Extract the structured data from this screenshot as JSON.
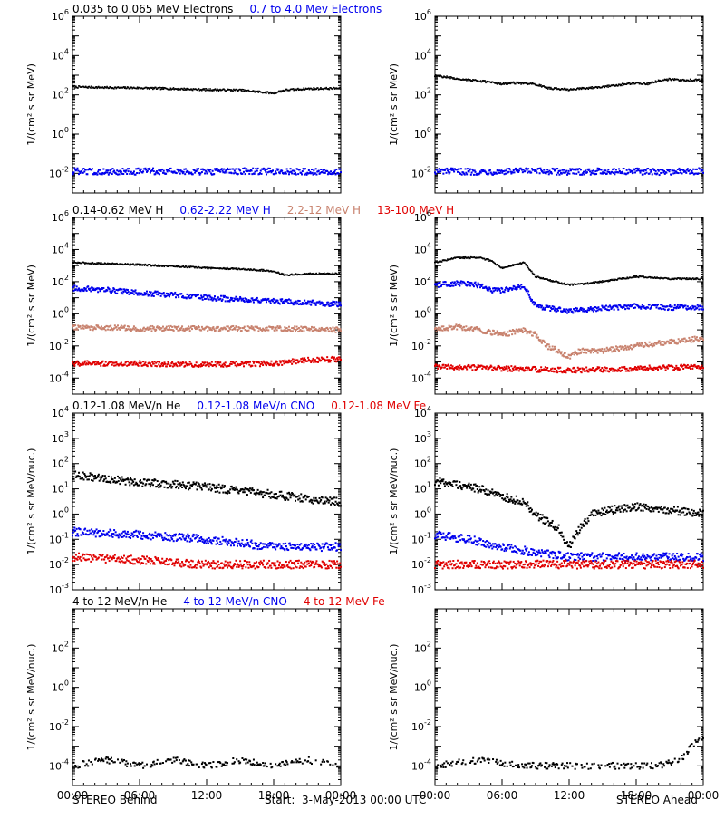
{
  "colors": {
    "black": "#000000",
    "blue": "#0000ee",
    "tan": "#c8826e",
    "red": "#e00000"
  },
  "footer": {
    "left": "STEREO Behind",
    "center": "Start:  3-May-2013 00:00 UTC",
    "right": "STEREO Ahead"
  },
  "x_ticks": [
    "00:00",
    "06:00",
    "12:00",
    "18:00",
    "00:00"
  ],
  "chart_data": [
    {
      "type": "scatter",
      "row": 0,
      "title": "",
      "legend": [
        {
          "text": "0.035 to 0.065 MeV Electrons",
          "color": "black"
        },
        {
          "text": "0.7 to 4.0 Mev Electrons",
          "color": "blue"
        }
      ],
      "ylabel": "1/(cm² s sr MeV)",
      "yscale": "log",
      "ylim_exp": [
        -3,
        6
      ],
      "yticks_exp": [
        -2,
        0,
        2,
        4,
        6
      ],
      "xlim_hours": [
        0,
        24
      ],
      "panels": [
        {
          "name": "STEREO Behind",
          "series": [
            {
              "color": "black",
              "x": [
                0,
                3,
                6,
                9,
                12,
                15,
                18,
                19,
                21,
                24
              ],
              "y": [
                250,
                230,
                220,
                200,
                180,
                170,
                120,
                170,
                200,
                210
              ]
            },
            {
              "color": "blue",
              "x": [
                0,
                4,
                8,
                12,
                16,
                20,
                24
              ],
              "y": [
                0.013,
                0.012,
                0.013,
                0.012,
                0.013,
                0.012,
                0.013
              ]
            }
          ]
        },
        {
          "name": "STEREO Ahead",
          "series": [
            {
              "color": "black",
              "x": [
                0,
                1,
                2,
                4,
                6,
                7,
                9,
                10,
                12,
                13,
                15,
                18,
                19,
                20,
                21,
                22,
                24
              ],
              "y": [
                900,
                800,
                650,
                500,
                350,
                400,
                350,
                220,
                180,
                200,
                250,
                400,
                350,
                500,
                600,
                550,
                550
              ]
            },
            {
              "color": "blue",
              "x": [
                0,
                4,
                8,
                12,
                16,
                20,
                24
              ],
              "y": [
                0.013,
                0.012,
                0.013,
                0.012,
                0.013,
                0.012,
                0.013
              ]
            }
          ]
        }
      ]
    },
    {
      "type": "scatter",
      "row": 1,
      "title": "",
      "legend": [
        {
          "text": "0.14-0.62 MeV H",
          "color": "black"
        },
        {
          "text": "0.62-2.22 MeV H",
          "color": "blue"
        },
        {
          "text": "2.2-12 MeV H",
          "color": "tan"
        },
        {
          "text": "13-100 MeV H",
          "color": "red"
        }
      ],
      "ylabel": "1/(cm² s sr MeV)",
      "yscale": "log",
      "ylim_exp": [
        -5,
        6
      ],
      "yticks_exp": [
        -4,
        -2,
        0,
        2,
        4,
        6
      ],
      "xlim_hours": [
        0,
        24
      ],
      "panels": [
        {
          "name": "STEREO Behind",
          "series": [
            {
              "color": "black",
              "x": [
                0,
                3,
                6,
                9,
                12,
                15,
                18,
                19,
                21,
                24
              ],
              "y": [
                1500,
                1300,
                1100,
                900,
                700,
                600,
                450,
                250,
                300,
                300
              ]
            },
            {
              "color": "blue",
              "x": [
                0,
                3,
                6,
                9,
                12,
                15,
                18,
                21,
                24
              ],
              "y": [
                40,
                30,
                20,
                15,
                10,
                8,
                6,
                5,
                4
              ]
            },
            {
              "color": "tan",
              "x": [
                0,
                6,
                12,
                18,
                24
              ],
              "y": [
                0.15,
                0.12,
                0.12,
                0.12,
                0.1
              ]
            },
            {
              "color": "red",
              "x": [
                0,
                6,
                12,
                18,
                21,
                24
              ],
              "y": [
                0.0008,
                0.0008,
                0.0007,
                0.0008,
                0.0013,
                0.0015
              ]
            }
          ]
        },
        {
          "name": "STEREO Ahead",
          "series": [
            {
              "color": "black",
              "x": [
                0,
                2,
                4,
                5,
                6,
                8,
                9,
                12,
                14,
                18,
                21,
                24
              ],
              "y": [
                1500,
                3000,
                3000,
                2000,
                700,
                1500,
                200,
                60,
                80,
                200,
                150,
                150
              ]
            },
            {
              "color": "blue",
              "x": [
                0,
                2,
                4,
                5,
                6,
                8,
                9,
                12,
                14,
                18,
                21,
                24
              ],
              "y": [
                60,
                80,
                60,
                30,
                30,
                50,
                3,
                1.5,
                2,
                3,
                2.5,
                2.5
              ]
            },
            {
              "color": "tan",
              "x": [
                0,
                2,
                4,
                6,
                8,
                9,
                10,
                11,
                12,
                13,
                15,
                18,
                24
              ],
              "y": [
                0.1,
                0.15,
                0.1,
                0.05,
                0.1,
                0.05,
                0.01,
                0.005,
                0.002,
                0.005,
                0.005,
                0.01,
                0.03
              ]
            },
            {
              "color": "red",
              "x": [
                0,
                6,
                12,
                18,
                24
              ],
              "y": [
                0.0005,
                0.0004,
                0.0003,
                0.0004,
                0.0005
              ]
            }
          ]
        }
      ]
    },
    {
      "type": "scatter",
      "row": 2,
      "title": "",
      "legend": [
        {
          "text": "0.12-1.08 MeV/n He",
          "color": "black"
        },
        {
          "text": "0.12-1.08 MeV/n CNO",
          "color": "blue"
        },
        {
          "text": "0.12-1.08 MeV Fe",
          "color": "red"
        }
      ],
      "ylabel": "1/(cm² s sr MeV/nuc.)",
      "yscale": "log",
      "ylim_exp": [
        -3,
        4
      ],
      "yticks_exp": [
        -3,
        -2,
        -1,
        0,
        1,
        2,
        3,
        4
      ],
      "xlim_hours": [
        0,
        24
      ],
      "panels": [
        {
          "name": "STEREO Behind",
          "series": [
            {
              "color": "black",
              "x": [
                0,
                3,
                6,
                9,
                12,
                15,
                18,
                21,
                24
              ],
              "y": [
                35,
                25,
                18,
                15,
                12,
                8,
                6,
                4,
                3
              ]
            },
            {
              "color": "blue",
              "x": [
                0,
                6,
                12,
                18,
                24
              ],
              "y": [
                0.2,
                0.15,
                0.1,
                0.05,
                0.05
              ]
            },
            {
              "color": "red",
              "x": [
                0,
                6,
                12,
                18,
                24
              ],
              "y": [
                0.02,
                0.015,
                0.01,
                0.01,
                0.01
              ]
            }
          ]
        },
        {
          "name": "STEREO Ahead",
          "series": [
            {
              "color": "black",
              "x": [
                0,
                2,
                4,
                6,
                8,
                9,
                10,
                11,
                12,
                13,
                14,
                16,
                18,
                21,
                24
              ],
              "y": [
                20,
                15,
                10,
                5,
                3,
                1,
                0.5,
                0.3,
                0.05,
                0.3,
                1,
                1.5,
                2,
                1.5,
                1
              ]
            },
            {
              "color": "blue",
              "x": [
                0,
                3,
                6,
                9,
                12,
                15,
                18,
                21,
                24
              ],
              "y": [
                0.15,
                0.1,
                0.05,
                0.03,
                0.02,
                0.02,
                0.02,
                0.02,
                0.02
              ]
            },
            {
              "color": "red",
              "x": [
                0,
                6,
                12,
                18,
                24
              ],
              "y": [
                0.01,
                0.01,
                0.01,
                0.01,
                0.01
              ]
            }
          ]
        }
      ]
    },
    {
      "type": "scatter",
      "row": 3,
      "title": "",
      "legend": [
        {
          "text": "4 to 12 MeV/n He",
          "color": "black"
        },
        {
          "text": "4 to 12 MeV/n CNO",
          "color": "blue"
        },
        {
          "text": "4 to 12 MeV Fe",
          "color": "red"
        }
      ],
      "ylabel": "1/(cm² s sr MeV/nuc.)",
      "yscale": "log",
      "ylim_exp": [
        -5,
        4
      ],
      "yticks_exp": [
        -4,
        -2,
        0,
        2
      ],
      "xlim_hours": [
        0,
        24
      ],
      "panels": [
        {
          "name": "STEREO Behind",
          "series": [
            {
              "color": "black",
              "x": [
                0,
                3,
                6,
                9,
                12,
                15,
                18,
                21,
                24
              ],
              "y": [
                0.0001,
                0.0002,
                0.0001,
                0.0002,
                0.0001,
                0.0002,
                0.0001,
                0.0002,
                0.0001
              ]
            }
          ]
        },
        {
          "name": "STEREO Ahead",
          "series": [
            {
              "color": "black",
              "x": [
                0,
                4,
                8,
                12,
                16,
                20,
                22,
                23,
                24
              ],
              "y": [
                0.0001,
                0.0002,
                0.0001,
                0.0001,
                0.0001,
                0.0001,
                0.0002,
                0.001,
                0.003
              ]
            }
          ]
        }
      ]
    }
  ]
}
